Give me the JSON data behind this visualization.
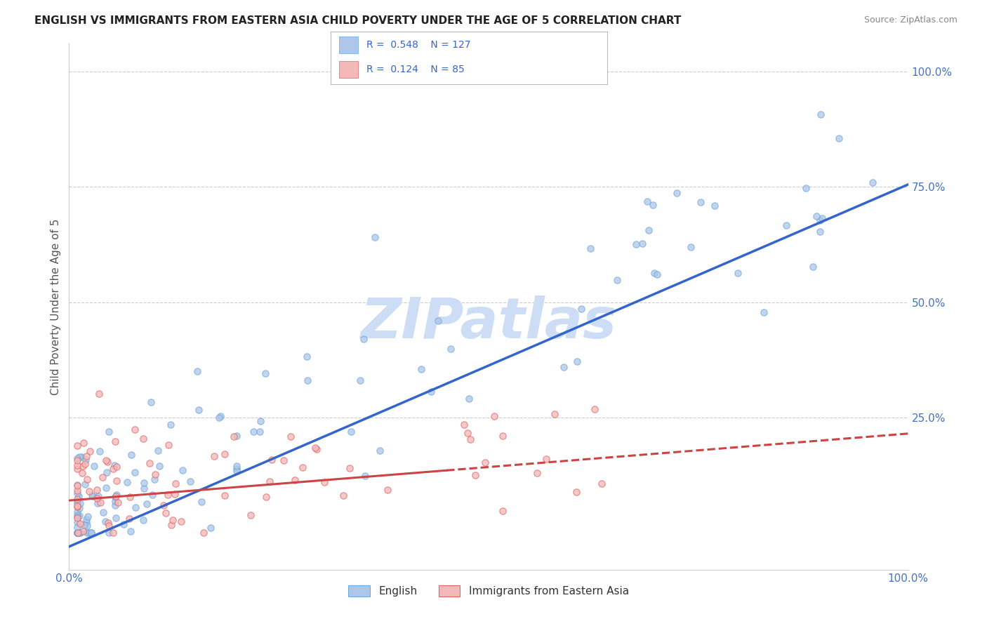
{
  "title": "ENGLISH VS IMMIGRANTS FROM EASTERN ASIA CHILD POVERTY UNDER THE AGE OF 5 CORRELATION CHART",
  "source_text": "Source: ZipAtlas.com",
  "ylabel": "Child Poverty Under the Age of 5",
  "xlim": [
    0,
    1
  ],
  "ylim": [
    0,
    1.05
  ],
  "english_R": 0.548,
  "english_N": 127,
  "immigrants_R": 0.124,
  "immigrants_N": 85,
  "english_fill_color": "#aec6e8",
  "english_edge_color": "#6fa8dc",
  "immigrants_fill_color": "#f4b8b8",
  "immigrants_edge_color": "#e06666",
  "english_line_color": "#3366cc",
  "immigrants_line_color": "#cc4444",
  "watermark_color": "#ccddf5",
  "background_color": "#ffffff",
  "grid_color": "#cccccc",
  "legend_label_english": "English",
  "legend_label_immigrants": "Immigrants from Eastern Asia",
  "title_color": "#222222",
  "axis_label_color": "#4472c4",
  "right_tick_color": "#4472c4",
  "source_color": "#888888",
  "ylabel_color": "#555555"
}
